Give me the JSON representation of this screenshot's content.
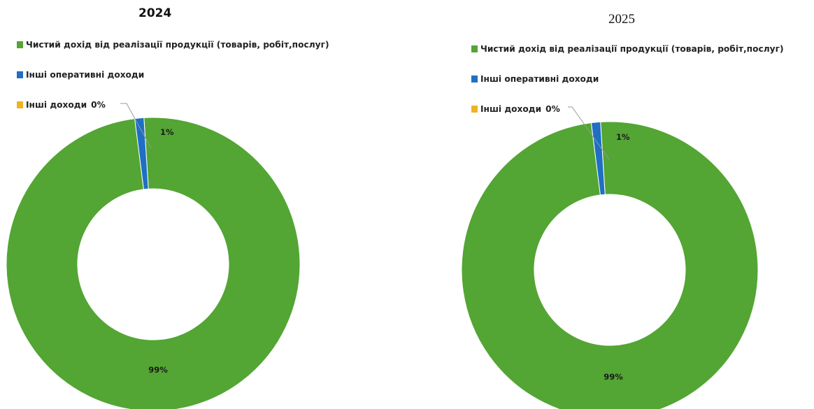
{
  "colors": {
    "net_income": "#53a534",
    "other_operating": "#1f6fc4",
    "other_income": "#f0b222"
  },
  "categories": [
    "Чистий дохід від реалізації продукції (товарів, робіт,послуг)",
    "Інші оперативні доходи",
    "Інші доходи"
  ],
  "chart_data": [
    {
      "type": "pie",
      "title": "2024",
      "categories": [
        "Чистий дохід від реалізації продукції (товарів, робіт,послуг)",
        "Інші оперативні доходи",
        "Інші доходи"
      ],
      "values": [
        99,
        1,
        0
      ],
      "data_labels": [
        "99%",
        "1%",
        "0%"
      ],
      "legend_position": "top-left"
    },
    {
      "type": "pie",
      "title": "2025",
      "categories": [
        "Чистий дохід від реалізації продукції (товарів, робіт,послуг)",
        "Інші оперативні доходи",
        "Інші доходи"
      ],
      "values": [
        99,
        1,
        0
      ],
      "data_labels": [
        "99%",
        "1%",
        "0%"
      ],
      "legend_position": "top-left"
    }
  ]
}
